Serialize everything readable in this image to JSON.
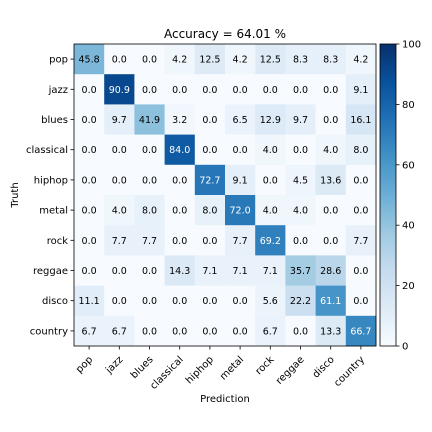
{
  "chart_data": {
    "type": "heatmap",
    "title": "Accuracy = 64.01 %",
    "xlabel": "Prediction",
    "ylabel": "Truth",
    "row_labels": [
      "pop",
      "jazz",
      "blues",
      "classical",
      "hiphop",
      "metal",
      "rock",
      "reggae",
      "disco",
      "country"
    ],
    "col_labels": [
      "pop",
      "jazz",
      "blues",
      "classical",
      "hiphop",
      "metal",
      "rock",
      "reggae",
      "disco",
      "country"
    ],
    "values": [
      [
        45.8,
        0.0,
        0.0,
        4.2,
        12.5,
        4.2,
        12.5,
        8.3,
        8.3,
        4.2
      ],
      [
        0.0,
        90.9,
        0.0,
        0.0,
        0.0,
        0.0,
        0.0,
        0.0,
        0.0,
        9.1
      ],
      [
        0.0,
        9.7,
        41.9,
        3.2,
        0.0,
        6.5,
        12.9,
        9.7,
        0.0,
        16.1
      ],
      [
        0.0,
        0.0,
        0.0,
        84.0,
        0.0,
        0.0,
        4.0,
        0.0,
        4.0,
        8.0
      ],
      [
        0.0,
        0.0,
        0.0,
        0.0,
        72.7,
        9.1,
        0.0,
        4.5,
        13.6,
        0.0
      ],
      [
        0.0,
        4.0,
        8.0,
        0.0,
        8.0,
        72.0,
        4.0,
        4.0,
        0.0,
        0.0
      ],
      [
        0.0,
        7.7,
        7.7,
        0.0,
        0.0,
        7.7,
        69.2,
        0.0,
        0.0,
        7.7
      ],
      [
        0.0,
        0.0,
        0.0,
        14.3,
        7.1,
        7.1,
        7.1,
        35.7,
        28.6,
        0.0
      ],
      [
        11.1,
        0.0,
        0.0,
        0.0,
        0.0,
        0.0,
        5.6,
        22.2,
        61.1,
        0.0
      ],
      [
        6.7,
        6.7,
        0.0,
        0.0,
        0.0,
        0.0,
        6.7,
        0.0,
        13.3,
        66.7
      ]
    ],
    "value_range": [
      0,
      100
    ],
    "colorbar": {
      "ticks": [
        0,
        20,
        40,
        60,
        80,
        100
      ],
      "tick_labels": [
        "0",
        "20",
        "40",
        "60",
        "80",
        "100"
      ]
    },
    "colormap": "Blues",
    "colormap_stops": [
      "#f7fbff",
      "#deebf7",
      "#c6dbef",
      "#9ecae1",
      "#6baed6",
      "#4292c6",
      "#2171b5",
      "#08519c",
      "#08306b"
    ],
    "text_colors": {
      "dark_cell": "#ffffff",
      "light_cell": "#000000"
    },
    "grid": false
  }
}
